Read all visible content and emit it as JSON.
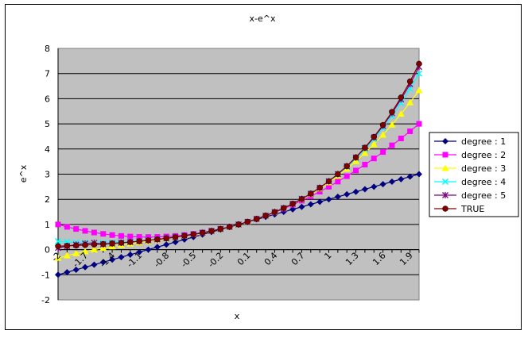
{
  "chart_data": {
    "type": "line",
    "title": "x-e^x",
    "xlabel": "x",
    "ylabel": "e^x",
    "xlim": [
      -2,
      2
    ],
    "ylim": [
      -2,
      8
    ],
    "y_ticks": [
      "-2",
      "-1",
      "0",
      "1",
      "2",
      "3",
      "4",
      "5",
      "6",
      "7",
      "8"
    ],
    "x_tick_labels": [
      "-2",
      "-1.7",
      "-1.4",
      "-1.1",
      "-0.8",
      "-0.5",
      "-0.2",
      "0.1",
      "0.4",
      "0.7",
      "1",
      "1.3",
      "1.6",
      "1.9"
    ],
    "x_tick_values": [
      -2,
      -1.7,
      -1.4,
      -1.1,
      -0.8,
      -0.5,
      -0.2,
      0.1,
      0.4,
      0.7,
      1.0,
      1.3,
      1.6,
      1.9
    ],
    "x": [
      -2.0,
      -1.9,
      -1.8,
      -1.7,
      -1.6,
      -1.5,
      -1.4,
      -1.3,
      -1.2,
      -1.1,
      -1.0,
      -0.9,
      -0.8,
      -0.7,
      -0.6,
      -0.5,
      -0.4,
      -0.3,
      -0.2,
      -0.1,
      0.0,
      0.1,
      0.2,
      0.3,
      0.4,
      0.5,
      0.6,
      0.7,
      0.8,
      0.9,
      1.0,
      1.1,
      1.2,
      1.3,
      1.4,
      1.5,
      1.6,
      1.7,
      1.8,
      1.9,
      2.0
    ],
    "series": [
      {
        "name": "degree : 1",
        "color": "#000080",
        "marker": "diamond",
        "values": [
          -1.0,
          -0.9,
          -0.8,
          -0.7,
          -0.6,
          -0.5,
          -0.4,
          -0.3,
          -0.2,
          -0.1,
          0.0,
          0.1,
          0.2,
          0.3,
          0.4,
          0.5,
          0.6,
          0.7,
          0.8,
          0.9,
          1.0,
          1.1,
          1.2,
          1.3,
          1.4,
          1.5,
          1.6,
          1.7,
          1.8,
          1.9,
          2.0,
          2.1,
          2.2,
          2.3,
          2.4,
          2.5,
          2.6,
          2.7,
          2.8,
          2.9,
          3.0
        ]
      },
      {
        "name": "degree : 2",
        "color": "#FF00FF",
        "marker": "square",
        "values": [
          1.0,
          0.905,
          0.82,
          0.745,
          0.68,
          0.625,
          0.58,
          0.545,
          0.52,
          0.505,
          0.5,
          0.505,
          0.52,
          0.545,
          0.58,
          0.625,
          0.68,
          0.745,
          0.82,
          0.905,
          1.0,
          1.105,
          1.22,
          1.345,
          1.48,
          1.625,
          1.78,
          1.945,
          2.12,
          2.305,
          2.5,
          2.705,
          2.92,
          3.145,
          3.38,
          3.625,
          3.88,
          4.145,
          4.42,
          4.705,
          5.0
        ]
      },
      {
        "name": "degree : 3",
        "color": "#FFFF00",
        "marker": "triangle",
        "values": [
          -0.333,
          -0.238,
          -0.152,
          -0.074,
          -0.003,
          0.063,
          0.123,
          0.179,
          0.232,
          0.283,
          0.333,
          0.383,
          0.435,
          0.488,
          0.544,
          0.604,
          0.669,
          0.74,
          0.819,
          0.905,
          1.0,
          1.105,
          1.221,
          1.35,
          1.491,
          1.646,
          1.816,
          2.002,
          2.205,
          2.427,
          2.667,
          2.927,
          3.208,
          3.511,
          3.837,
          4.188,
          4.563,
          4.964,
          5.392,
          5.848,
          6.333
        ]
      },
      {
        "name": "degree : 4",
        "color": "#00FFFF",
        "marker": "x",
        "values": [
          0.333,
          0.305,
          0.285,
          0.274,
          0.27,
          0.273,
          0.283,
          0.298,
          0.318,
          0.344,
          0.375,
          0.411,
          0.452,
          0.498,
          0.549,
          0.607,
          0.67,
          0.741,
          0.819,
          0.905,
          1.0,
          1.105,
          1.221,
          1.35,
          1.492,
          1.648,
          1.821,
          2.012,
          2.222,
          2.454,
          2.708,
          2.988,
          3.294,
          3.63,
          3.997,
          4.398,
          4.836,
          5.312,
          5.829,
          6.391,
          7.0
        ]
      },
      {
        "name": "degree : 5",
        "color": "#800080",
        "marker": "star",
        "values": [
          0.067,
          0.14,
          0.197,
          0.24,
          0.27,
          0.21,
          0.24,
          0.27,
          0.3,
          0.335,
          0.367,
          0.406,
          0.449,
          0.497,
          0.549,
          0.607,
          0.67,
          0.741,
          0.819,
          0.905,
          1.0,
          1.105,
          1.221,
          1.35,
          1.492,
          1.649,
          1.822,
          2.014,
          2.225,
          2.459,
          2.717,
          3.001,
          3.314,
          3.66,
          4.04,
          4.46,
          4.919,
          5.424,
          5.976,
          6.582,
          7.267
        ]
      },
      {
        "name": "TRUE",
        "color": "#800000",
        "marker": "circle",
        "values": [
          0.135,
          0.15,
          0.165,
          0.183,
          0.202,
          0.223,
          0.247,
          0.273,
          0.301,
          0.333,
          0.368,
          0.407,
          0.449,
          0.497,
          0.549,
          0.607,
          0.67,
          0.741,
          0.819,
          0.905,
          1.0,
          1.105,
          1.221,
          1.35,
          1.492,
          1.649,
          1.822,
          2.014,
          2.226,
          2.46,
          2.718,
          3.004,
          3.32,
          3.669,
          4.055,
          4.482,
          4.953,
          5.474,
          6.05,
          6.686,
          7.389
        ]
      }
    ],
    "plot_background": "#C0C0C0",
    "grid": "horizontal",
    "legend_position": "right"
  }
}
